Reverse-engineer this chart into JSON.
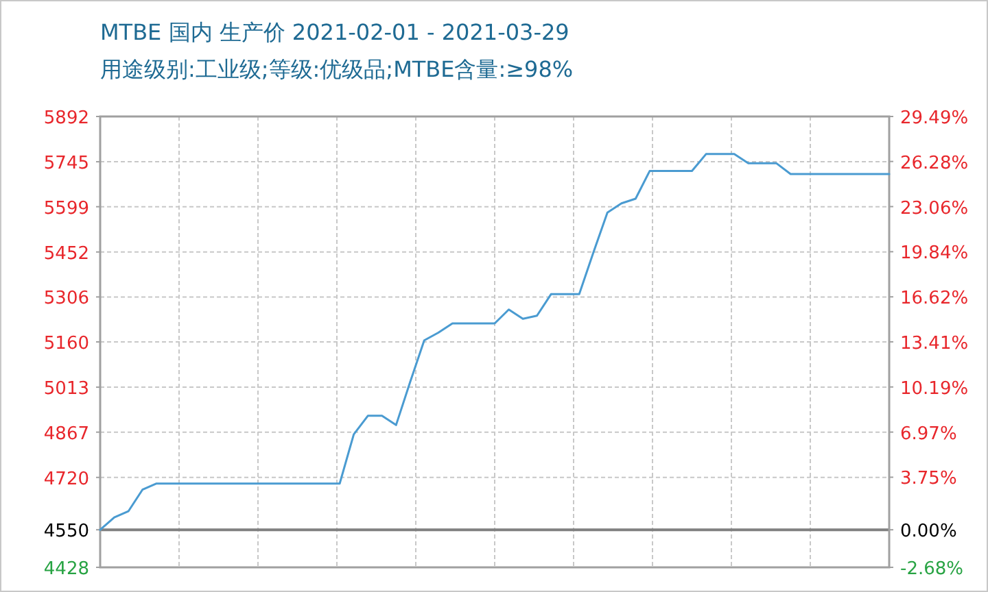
{
  "chart_data": {
    "type": "line",
    "title": "MTBE 国内 生产价 2021-02-01 - 2021-03-29",
    "subtitle": "用途级别:工业级;等级:优级品;MTBE含量:≥98%",
    "categories": [
      null,
      null,
      null,
      null,
      null,
      null,
      null,
      null,
      null,
      null,
      null,
      null,
      null,
      null,
      null,
      null,
      null,
      null,
      null,
      null,
      null,
      null,
      null,
      null,
      null,
      null,
      null,
      null,
      null,
      null,
      null,
      null,
      null,
      null,
      null,
      null,
      null,
      null,
      null,
      null,
      null,
      null,
      null,
      null,
      null,
      null,
      null,
      null,
      null,
      null,
      null,
      null,
      null,
      null,
      null,
      null,
      null
    ],
    "series": [
      {
        "color": "#4a9bd1",
        "values": [
          4550,
          4590,
          4610,
          4680,
          4700,
          4700,
          4700,
          4700,
          4700,
          4700,
          4700,
          4700,
          4700,
          4700,
          4700,
          4700,
          4700,
          4700,
          4860,
          4920,
          4920,
          4890,
          5030,
          5165,
          5190,
          5220,
          5220,
          5220,
          5220,
          5265,
          5235,
          5245,
          5315,
          5315,
          5315,
          5450,
          5580,
          5610,
          5625,
          5715,
          5715,
          5715,
          5715,
          5770,
          5770,
          5770,
          5740,
          5740,
          5740,
          5705,
          5705,
          5705,
          5705,
          5705,
          5705,
          5705,
          5705
        ]
      }
    ],
    "ylim": [
      4428,
      5892
    ],
    "yticks": [
      4428,
      4550,
      4720,
      4867,
      5013,
      5160,
      5306,
      5452,
      5599,
      5745,
      5892
    ],
    "y2lim": [
      -2.68,
      29.49
    ],
    "y2ticks": [
      {
        "value": -2.68,
        "label": "-2.68%"
      },
      {
        "value": 0,
        "label": "0.00%"
      },
      {
        "value": 3.75,
        "label": "3.75%"
      },
      {
        "value": 6.97,
        "label": "6.97%"
      },
      {
        "value": 10.19,
        "label": "10.19%"
      },
      {
        "value": 13.41,
        "label": "13.41%"
      },
      {
        "value": 16.62,
        "label": "16.62%"
      },
      {
        "value": 19.84,
        "label": "19.84%"
      },
      {
        "value": 23.06,
        "label": "23.06%"
      },
      {
        "value": 26.28,
        "label": "26.28%"
      },
      {
        "value": 29.49,
        "label": "29.49%"
      }
    ],
    "ref_lines": [
      {
        "axis": "y",
        "value": 4550,
        "color": "#808080"
      }
    ],
    "grid": true,
    "tick_labels": "y",
    "line_style": "solid",
    "marker": "none"
  }
}
